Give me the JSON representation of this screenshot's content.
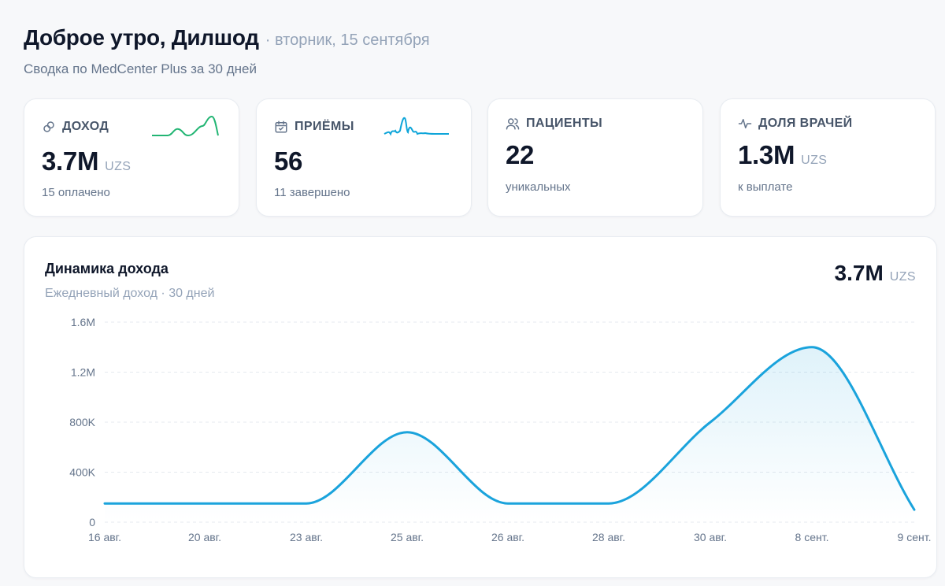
{
  "header": {
    "greeting": "Доброе утро, Дилшод",
    "date": "· вторник, 15 сентября",
    "subtitle": "Сводка по MedCenter Plus за 30 дней"
  },
  "stats": [
    {
      "label": "ДОХОД",
      "value": "3.7M",
      "unit": "UZS",
      "sub": "15 оплачено",
      "icon": "link-icon",
      "color": "#22b573"
    },
    {
      "label": "ПРИЁМЫ",
      "value": "56",
      "unit": "",
      "sub": "11 завершено",
      "icon": "calendar-check-icon",
      "color": "#0ea5d9"
    },
    {
      "label": "ПАЦИЕНТЫ",
      "value": "22",
      "unit": "",
      "sub": "уникальных",
      "icon": "users-icon"
    },
    {
      "label": "ДОЛЯ ВРАЧЕЙ",
      "value": "1.3M",
      "unit": "UZS",
      "sub": "к выплате",
      "icon": "activity-icon"
    }
  ],
  "revenue_card": {
    "title": "Динамика дохода",
    "subtitle": "Ежедневный доход · 30 дней",
    "total_value": "3.7M",
    "total_unit": "UZS"
  },
  "chart_data": {
    "type": "area",
    "title": "Динамика дохода",
    "xlabel": "",
    "ylabel": "",
    "ylim": [
      0,
      1600000
    ],
    "y_ticks": [
      0,
      400000,
      800000,
      1200000,
      1600000
    ],
    "y_tick_labels": [
      "0",
      "400K",
      "800K",
      "1.2M",
      "1.6M"
    ],
    "categories": [
      "16 авг.",
      "20 авг.",
      "23 авг.",
      "25 авг.",
      "26 авг.",
      "28 авг.",
      "30 авг.",
      "8 сент.",
      "9 сент."
    ],
    "values": [
      150000,
      150000,
      150000,
      720000,
      150000,
      150000,
      800000,
      1400000,
      100000
    ],
    "grid": true,
    "line_color": "#1aa3dc"
  }
}
